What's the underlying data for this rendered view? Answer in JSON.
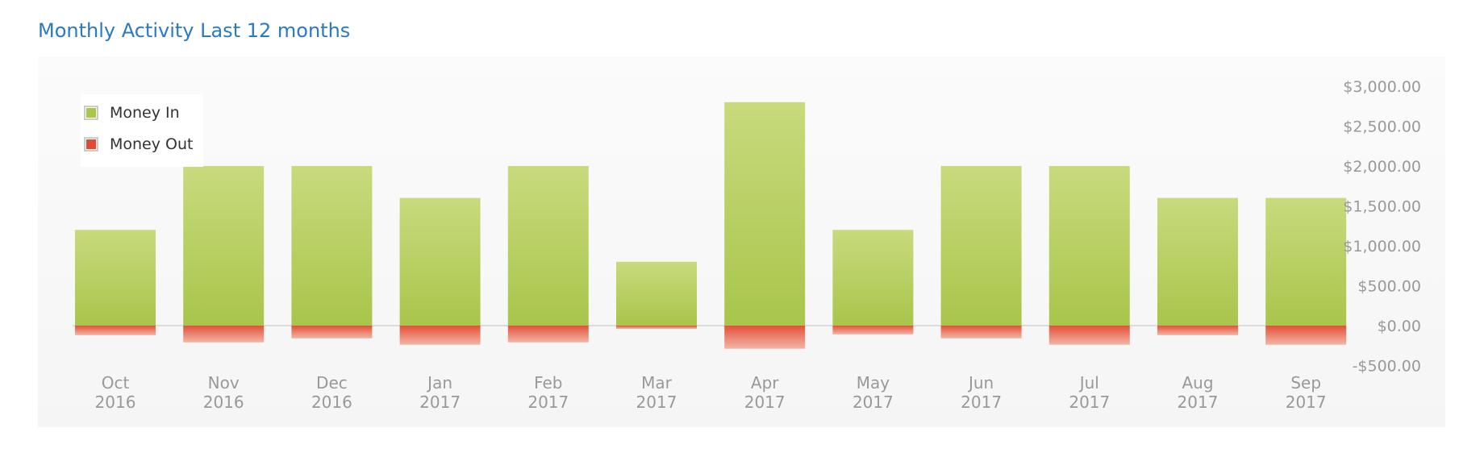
{
  "page": {
    "title": "Monthly Activity Last 12 months"
  },
  "legend": {
    "money_in": "Money In",
    "money_out": "Money Out"
  },
  "colors": {
    "money_in_top": "#c8da7d",
    "money_in_bottom": "#a9c54b",
    "money_in_swatch": "#a8c84c",
    "money_out_top": "#e2513a",
    "money_out_bottom": "#f3b5a5",
    "money_out_swatch": "#e04b35",
    "axis_text": "#999999",
    "title": "#2a79c4"
  },
  "chart_data": {
    "type": "bar",
    "title": "Monthly Activity Last 12 months",
    "categories": [
      [
        "Oct",
        "2016"
      ],
      [
        "Nov",
        "2016"
      ],
      [
        "Dec",
        "2016"
      ],
      [
        "Jan",
        "2017"
      ],
      [
        "Feb",
        "2017"
      ],
      [
        "Mar",
        "2017"
      ],
      [
        "Apr",
        "2017"
      ],
      [
        "May",
        "2017"
      ],
      [
        "Jun",
        "2017"
      ],
      [
        "Jul",
        "2017"
      ],
      [
        "Aug",
        "2017"
      ],
      [
        "Sep",
        "2017"
      ]
    ],
    "series": [
      {
        "name": "Money In",
        "values": [
          1200,
          2000,
          2000,
          1600,
          2000,
          800,
          2800,
          1200,
          2000,
          2000,
          1600,
          1600
        ]
      },
      {
        "name": "Money Out",
        "values": [
          -120,
          -210,
          -160,
          -240,
          -210,
          -40,
          -290,
          -110,
          -160,
          -240,
          -120,
          -240
        ]
      }
    ],
    "ylim": [
      -500,
      3000
    ],
    "yticks": [
      3000,
      2500,
      2000,
      1500,
      1000,
      500,
      0,
      -500
    ],
    "ytick_labels": [
      "$3,000.00",
      "$2,500.00",
      "$2,000.00",
      "$1,500.00",
      "$1,000.00",
      "$500.00",
      "$0.00",
      "-$500.00"
    ],
    "y_axis_position": "right",
    "legend_position": "top-left",
    "grid": false,
    "zero_line": true
  }
}
